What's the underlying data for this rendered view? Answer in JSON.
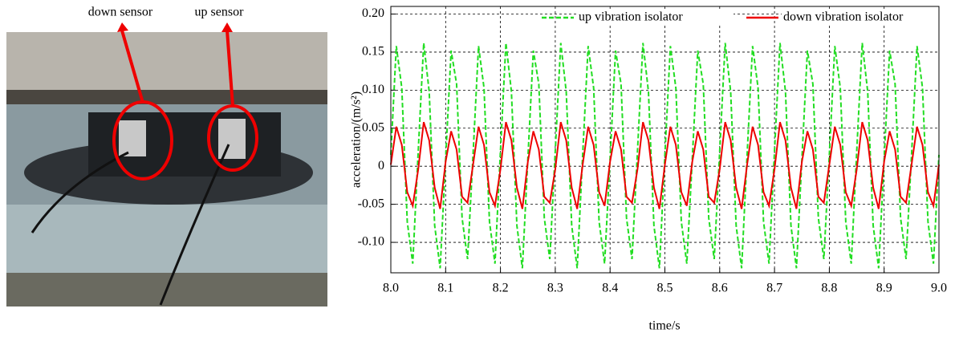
{
  "photo_labels": [
    "down sensor",
    "up sensor"
  ],
  "chart_data": {
    "type": "line",
    "x_label": "time/s",
    "y_label": "acceleration/(m/s²)",
    "xlim": [
      8,
      9
    ],
    "xticks": [
      {
        "value": 8,
        "label": "8.0"
      },
      8.1,
      8.2,
      8.3,
      8.4,
      8.5,
      8.6,
      8.7,
      8.8,
      8.9,
      {
        "value": 9,
        "label": "9.0"
      }
    ],
    "ylim": [
      -0.14,
      0.21
    ],
    "yticks": [
      {
        "value": 0.2,
        "label": "0.20"
      },
      0.15,
      {
        "value": 0.1,
        "label": "0.10"
      },
      0.05,
      0,
      -0.05,
      {
        "value": -0.1,
        "label": "-0.10"
      }
    ],
    "grid": true,
    "legend": "top-right",
    "x": [
      8,
      8.01,
      8.02,
      8.03,
      8.04,
      8.05,
      8.06,
      8.07,
      8.08,
      8.09,
      8.1,
      8.11,
      8.12,
      8.13,
      8.14,
      8.15,
      8.16,
      8.17,
      8.18,
      8.19,
      8.2,
      8.21,
      8.22,
      8.23,
      8.24,
      8.25,
      8.26,
      8.27,
      8.28,
      8.29,
      8.3,
      8.31,
      8.32,
      8.33,
      8.34,
      8.35,
      8.36,
      8.37,
      8.38,
      8.39,
      8.4,
      8.41,
      8.42,
      8.43,
      8.44,
      8.45,
      8.46,
      8.47,
      8.48,
      8.49,
      8.5,
      8.51,
      8.52,
      8.53,
      8.54,
      8.55,
      8.56,
      8.57,
      8.58,
      8.59,
      8.6,
      8.61,
      8.62,
      8.63,
      8.64,
      8.65,
      8.66,
      8.67,
      8.68,
      8.69,
      8.7,
      8.71,
      8.72,
      8.73,
      8.74,
      8.75,
      8.76,
      8.77,
      8.78,
      8.79,
      8.8,
      8.81,
      8.82,
      8.83,
      8.84,
      8.85,
      8.86,
      8.87,
      8.88,
      8.89,
      8.9,
      8.91,
      8.92,
      8.93,
      8.94,
      8.95,
      8.96,
      8.97,
      8.98,
      8.99,
      9
    ],
    "series": [
      {
        "name": "up vibration isolator",
        "color": "#22dd22",
        "dash": true,
        "values": [
          0.015,
          0.158,
          0.103,
          -0.073,
          -0.128,
          0.02,
          0.162,
          0.098,
          -0.078,
          -0.134,
          0.01,
          0.152,
          0.108,
          -0.068,
          -0.122,
          0.015,
          0.158,
          0.103,
          -0.073,
          -0.128,
          0.02,
          0.162,
          0.098,
          -0.078,
          -0.134,
          0.01,
          0.152,
          0.108,
          -0.068,
          -0.122,
          0.02,
          0.162,
          0.098,
          -0.078,
          -0.134,
          0.015,
          0.158,
          0.103,
          -0.073,
          -0.128,
          0.01,
          0.152,
          0.108,
          -0.068,
          -0.122,
          0.02,
          0.162,
          0.098,
          -0.078,
          -0.134,
          0.015,
          0.158,
          0.103,
          -0.073,
          -0.128,
          0.01,
          0.152,
          0.108,
          -0.068,
          -0.122,
          0.02,
          0.162,
          0.098,
          -0.078,
          -0.134,
          0.015,
          0.158,
          0.103,
          -0.073,
          -0.128,
          0.02,
          0.162,
          0.098,
          -0.078,
          -0.134,
          0.01,
          0.152,
          0.108,
          -0.068,
          -0.122,
          0.015,
          0.158,
          0.103,
          -0.073,
          -0.128,
          0.02,
          0.162,
          0.098,
          -0.078,
          -0.134,
          0.01,
          0.152,
          0.108,
          -0.068,
          -0.122,
          0.015,
          0.158,
          0.103,
          -0.073,
          -0.128,
          0.015
        ]
      },
      {
        "name": "down vibration isolator",
        "color": "#ee0000",
        "dash": false,
        "values": [
          0.002,
          0.052,
          0.028,
          -0.034,
          -0.052,
          -0.004,
          0.058,
          0.034,
          -0.028,
          -0.056,
          0.006,
          0.046,
          0.022,
          -0.04,
          -0.048,
          0.002,
          0.052,
          0.028,
          -0.034,
          -0.052,
          -0.004,
          0.058,
          0.034,
          -0.028,
          -0.056,
          0.006,
          0.046,
          0.022,
          -0.04,
          -0.048,
          -0.004,
          0.058,
          0.034,
          -0.028,
          -0.056,
          0.002,
          0.052,
          0.028,
          -0.034,
          -0.052,
          0.006,
          0.046,
          0.022,
          -0.04,
          -0.048,
          -0.004,
          0.058,
          0.034,
          -0.028,
          -0.056,
          0.002,
          0.052,
          0.028,
          -0.034,
          -0.052,
          0.006,
          0.046,
          0.022,
          -0.04,
          -0.048,
          -0.004,
          0.058,
          0.034,
          -0.028,
          -0.056,
          0.002,
          0.052,
          0.028,
          -0.034,
          -0.052,
          -0.004,
          0.058,
          0.034,
          -0.028,
          -0.056,
          0.006,
          0.046,
          0.022,
          -0.04,
          -0.048,
          0.002,
          0.052,
          0.028,
          -0.034,
          -0.052,
          -0.004,
          0.058,
          0.034,
          -0.028,
          -0.056,
          0.006,
          0.046,
          0.022,
          -0.04,
          -0.048,
          0.002,
          0.052,
          0.028,
          -0.034,
          -0.052,
          0.002
        ]
      }
    ]
  }
}
